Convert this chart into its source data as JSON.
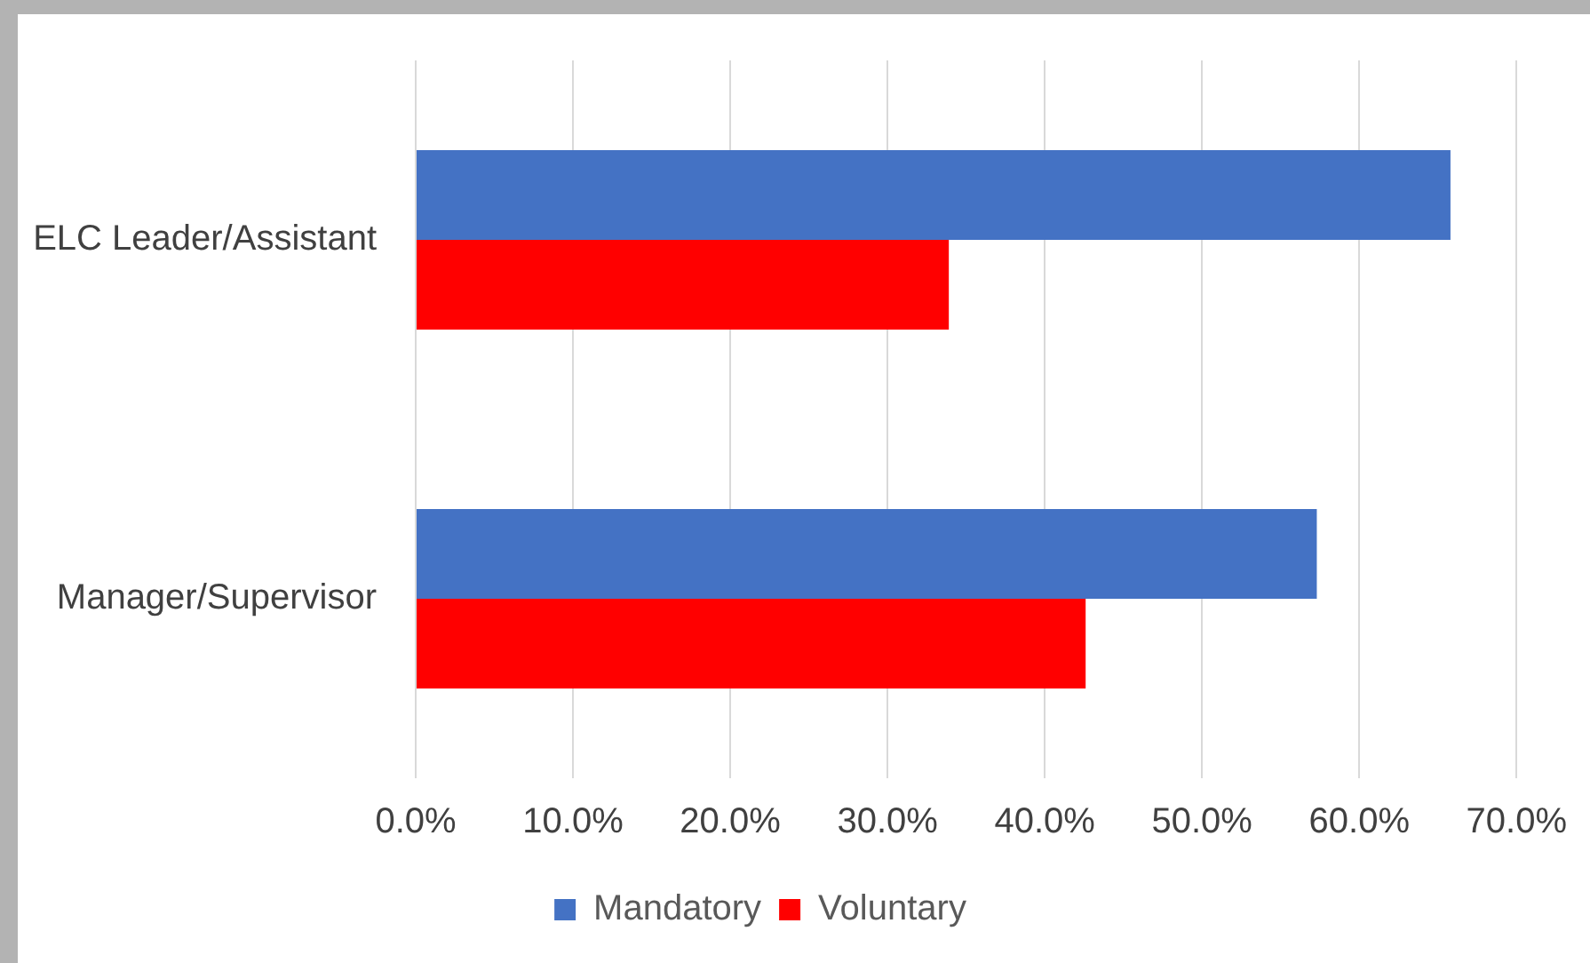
{
  "chart_data": {
    "type": "bar",
    "orientation": "horizontal",
    "categories": [
      "ELC Leader/Assistant",
      "Manager/Supervisor"
    ],
    "series": [
      {
        "name": "Mandatory",
        "color": "#4472c4",
        "values": [
          65.8,
          57.3
        ]
      },
      {
        "name": "Voluntary",
        "color": "#ff0000",
        "values": [
          33.9,
          42.6
        ]
      }
    ],
    "xlim": [
      0,
      70
    ],
    "xticks": [
      {
        "value": 0,
        "label": "0.0%"
      },
      {
        "value": 10,
        "label": "10.0%"
      },
      {
        "value": 20,
        "label": "20.0%"
      },
      {
        "value": 30,
        "label": "30.0%"
      },
      {
        "value": 40,
        "label": "40.0%"
      },
      {
        "value": 50,
        "label": "50.0%"
      },
      {
        "value": 60,
        "label": "60.0%"
      },
      {
        "value": 70,
        "label": "70.0%"
      }
    ],
    "grid": "x",
    "legend": "bottom"
  }
}
